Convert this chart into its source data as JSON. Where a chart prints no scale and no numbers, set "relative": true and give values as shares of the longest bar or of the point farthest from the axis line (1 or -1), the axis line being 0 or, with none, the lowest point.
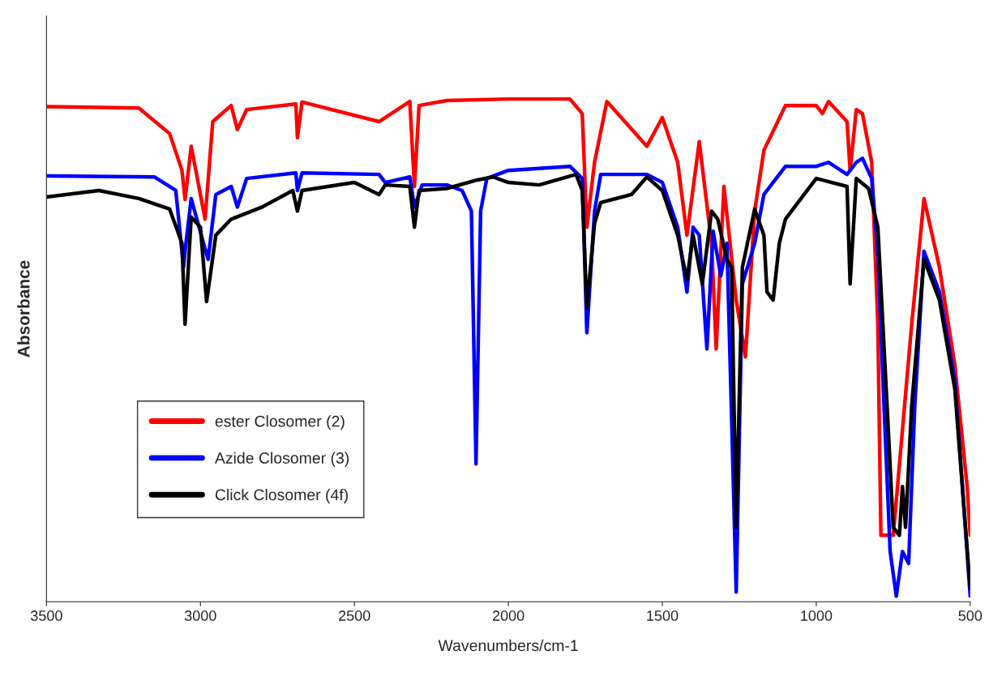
{
  "chart_data": {
    "type": "line",
    "relative": true,
    "xlabel": "Wavenumbers/cm-1",
    "ylabel": "Absorbance",
    "xlim": [
      3500,
      500
    ],
    "xticks": [
      3500,
      3000,
      2500,
      2000,
      1500,
      1000,
      500
    ],
    "tick_labels": "x",
    "grid": false,
    "legend": "bottom left",
    "marker": "none",
    "line_style": "solid",
    "series": [
      {
        "name": "ester Closomer (2)",
        "color": "#ff0000",
        "x": [
          3500,
          3200,
          3100,
          3060,
          3050,
          3030,
          2985,
          2960,
          2900,
          2880,
          2850,
          2690,
          2685,
          2670,
          2420,
          2320,
          2305,
          2290,
          2200,
          2000,
          1800,
          1760,
          1745,
          1720,
          1680,
          1550,
          1500,
          1450,
          1420,
          1380,
          1340,
          1325,
          1300,
          1260,
          1230,
          1200,
          1170,
          1100,
          1000,
          980,
          960,
          900,
          890,
          870,
          850,
          820,
          800,
          790,
          750,
          690,
          650,
          600,
          550,
          510,
          500
        ],
        "values": [
          0.985,
          0.982,
          0.931,
          0.858,
          0.8,
          0.906,
          0.761,
          0.955,
          0.987,
          0.939,
          0.979,
          0.99,
          0.923,
          0.994,
          0.955,
          0.995,
          0.826,
          0.987,
          0.997,
          1.0,
          1.0,
          0.971,
          0.745,
          0.874,
          0.995,
          0.906,
          0.963,
          0.874,
          0.729,
          0.915,
          0.713,
          0.503,
          0.826,
          0.6,
          0.487,
          0.777,
          0.898,
          0.987,
          0.987,
          0.971,
          0.995,
          0.955,
          0.858,
          0.979,
          0.971,
          0.874,
          0.552,
          0.132,
          0.132,
          0.552,
          0.802,
          0.665,
          0.471,
          0.229,
          0.132
        ]
      },
      {
        "name": "Azide Closomer (3)",
        "color": "#0000ff",
        "x": [
          3500,
          3150,
          3080,
          3055,
          3050,
          3030,
          2990,
          2975,
          2950,
          2900,
          2880,
          2850,
          2690,
          2685,
          2670,
          2420,
          2400,
          2320,
          2305,
          2280,
          2200,
          2150,
          2120,
          2105,
          2090,
          2070,
          2000,
          1800,
          1760,
          1745,
          1720,
          1700,
          1550,
          1500,
          1450,
          1420,
          1400,
          1380,
          1355,
          1335,
          1310,
          1290,
          1260,
          1240,
          1200,
          1170,
          1100,
          1000,
          960,
          900,
          870,
          850,
          820,
          800,
          780,
          760,
          740,
          720,
          700,
          680,
          650,
          600,
          550,
          500
        ],
        "values": [
          0.847,
          0.845,
          0.818,
          0.665,
          0.697,
          0.802,
          0.713,
          0.681,
          0.81,
          0.826,
          0.785,
          0.842,
          0.853,
          0.818,
          0.853,
          0.85,
          0.834,
          0.845,
          0.785,
          0.829,
          0.829,
          0.818,
          0.777,
          0.274,
          0.777,
          0.842,
          0.858,
          0.866,
          0.842,
          0.535,
          0.777,
          0.85,
          0.85,
          0.834,
          0.745,
          0.616,
          0.745,
          0.729,
          0.503,
          0.737,
          0.648,
          0.713,
          0.019,
          0.632,
          0.713,
          0.81,
          0.866,
          0.866,
          0.874,
          0.85,
          0.874,
          0.882,
          0.842,
          0.697,
          0.39,
          0.1,
          0.011,
          0.1,
          0.076,
          0.39,
          0.697,
          0.616,
          0.44,
          0.011
        ]
      },
      {
        "name": "Click Closomer (4f)",
        "color": "#000000",
        "x": [
          3500,
          3330,
          3200,
          3100,
          3060,
          3050,
          3030,
          3000,
          2980,
          2950,
          2900,
          2800,
          2700,
          2685,
          2670,
          2500,
          2420,
          2400,
          2320,
          2305,
          2290,
          2200,
          2100,
          2050,
          2000,
          1900,
          1780,
          1760,
          1745,
          1720,
          1700,
          1600,
          1550,
          1500,
          1450,
          1420,
          1400,
          1370,
          1340,
          1320,
          1290,
          1275,
          1260,
          1240,
          1200,
          1170,
          1160,
          1140,
          1120,
          1100,
          1000,
          900,
          890,
          870,
          830,
          800,
          770,
          750,
          730,
          720,
          710,
          690,
          650,
          600,
          550,
          500
        ],
        "values": [
          0.805,
          0.818,
          0.802,
          0.781,
          0.713,
          0.552,
          0.765,
          0.745,
          0.597,
          0.729,
          0.761,
          0.785,
          0.818,
          0.777,
          0.818,
          0.834,
          0.81,
          0.829,
          0.826,
          0.745,
          0.818,
          0.822,
          0.839,
          0.845,
          0.834,
          0.829,
          0.85,
          0.818,
          0.584,
          0.753,
          0.794,
          0.81,
          0.845,
          0.818,
          0.729,
          0.64,
          0.729,
          0.632,
          0.777,
          0.761,
          0.681,
          0.665,
          0.148,
          0.665,
          0.781,
          0.729,
          0.616,
          0.6,
          0.713,
          0.761,
          0.842,
          0.826,
          0.632,
          0.842,
          0.822,
          0.745,
          0.39,
          0.148,
          0.132,
          0.229,
          0.148,
          0.39,
          0.681,
          0.6,
          0.423,
          0.027
        ]
      }
    ]
  }
}
